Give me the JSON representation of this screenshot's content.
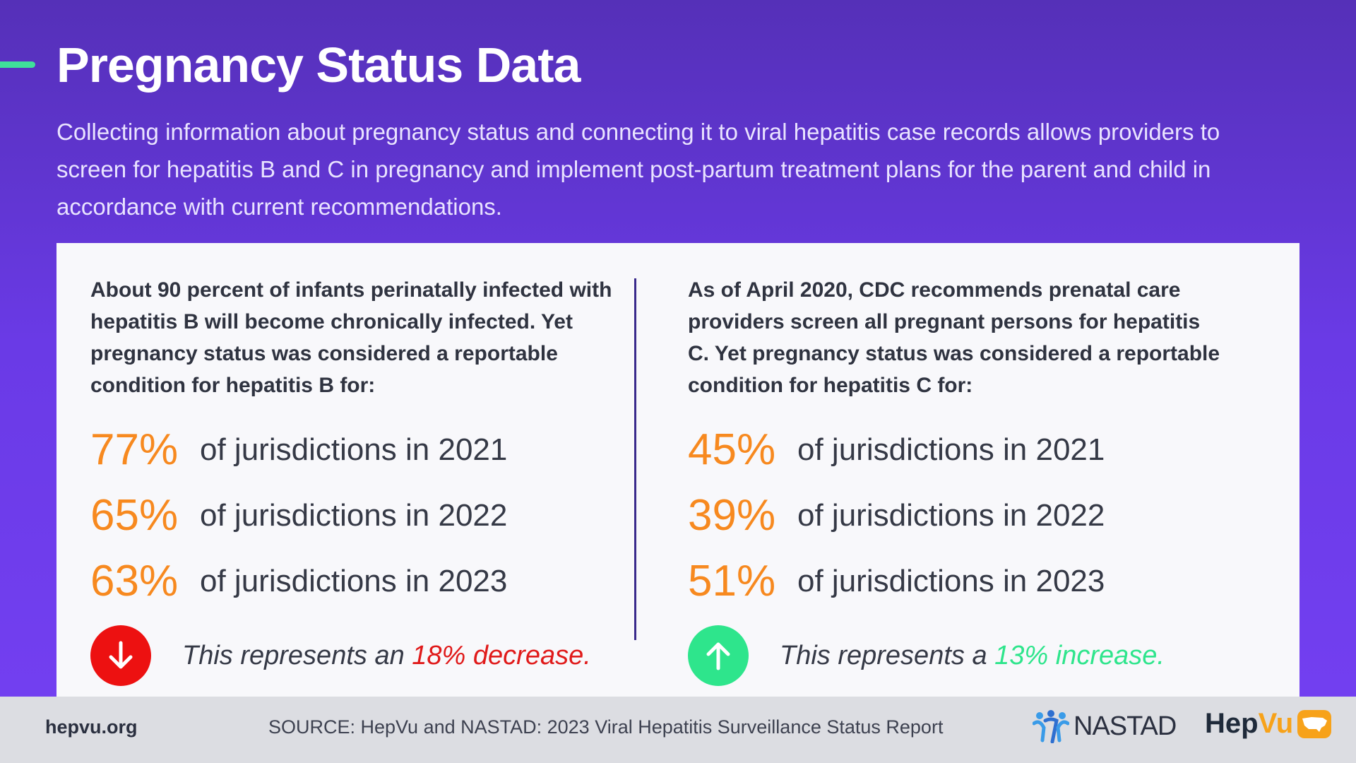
{
  "header": {
    "title": "Pregnancy Status Data",
    "intro": "Collecting information about pregnancy status and connecting it to viral hepatitis case records allows providers to screen for hepatitis B and C in pregnancy and implement post-partum treatment plans for the parent and child in accordance with current recommendations."
  },
  "left": {
    "lead": "About 90 percent of infants perinatally infected with hepatitis B will become chronically infected. Yet pregnancy status was considered a reportable condition for hepatitis B for:",
    "stats": [
      {
        "value": "77%",
        "label": "of jurisdictions in 2021"
      },
      {
        "value": "65%",
        "label": "of jurisdictions in 2022"
      },
      {
        "value": "63%",
        "label": "of jurisdictions in 2023"
      }
    ],
    "trend": {
      "direction": "down",
      "icon": "arrow-down-icon",
      "prefix": "This represents an",
      "highlight": "18% decrease."
    }
  },
  "right": {
    "lead": "As of April 2020, CDC recommends prenatal care providers screen all pregnant persons for hepatitis C. Yet pregnancy status was considered a reportable condition for hepatitis C for:",
    "stats": [
      {
        "value": "45%",
        "label": "of jurisdictions in 2021"
      },
      {
        "value": "39%",
        "label": "of jurisdictions in 2022"
      },
      {
        "value": "51%",
        "label": "of jurisdictions in 2023"
      }
    ],
    "trend": {
      "direction": "up",
      "icon": "arrow-up-icon",
      "prefix": "This represents a",
      "highlight": "13% increase."
    }
  },
  "footer": {
    "site": "hepvu.org",
    "source": "SOURCE: HepVu and NASTAD: 2023 Viral Hepatitis Surveillance Status Report",
    "nastad": "NASTAD",
    "hepvu_hep": "Hep",
    "hepvu_vu": "Vu"
  },
  "colors": {
    "background": "#6a3ae6",
    "accent_green": "#3fe09a",
    "stat_orange": "#f7891f",
    "decrease_red": "#e01a1a",
    "increase_green": "#2ee58c"
  }
}
